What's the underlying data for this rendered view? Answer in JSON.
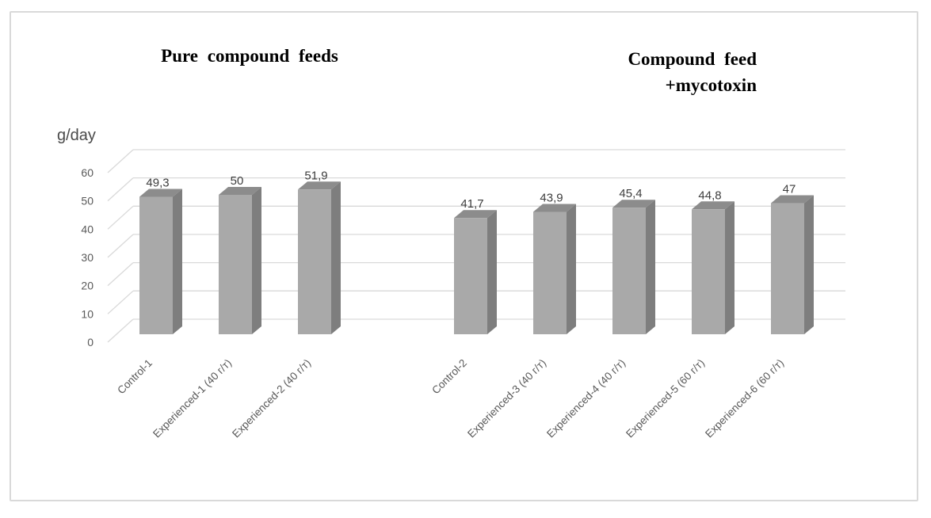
{
  "window": {
    "background": "#ffffff",
    "border_color": "#d9d9d9"
  },
  "titles": {
    "left": "Pure compound feeds",
    "right_line1": "Compound feed",
    "right_line2": "+mycotoxin"
  },
  "chart_data": {
    "type": "bar",
    "style": "3d-column",
    "title": "",
    "xlabel": "",
    "ylabel": "g/day",
    "ylim": [
      0,
      60
    ],
    "yticks": [
      0,
      10,
      20,
      30,
      40,
      50,
      60
    ],
    "grid": true,
    "legend": "none",
    "decimal_separator": ",",
    "group_titles": [
      "Pure compound feeds",
      "Compound feed +mycotoxin"
    ],
    "groups": [
      {
        "title": "Pure compound feeds",
        "categories": [
          "Control-1",
          "Experienced-1 (40 г/т)",
          "Experienced-2 (40 г/т)"
        ],
        "values": [
          49.3,
          50,
          51.9
        ]
      },
      {
        "title": "Compound feed +mycotoxin",
        "categories": [
          "Control-2",
          "Experienced-3 (40 г/т)",
          "Experienced-4 (40 г/т)",
          "Experienced-5 (60 г/т)",
          "Experienced-6 (60 г/т)"
        ],
        "values": [
          41.7,
          43.9,
          45.4,
          44.8,
          47
        ]
      }
    ],
    "categories": [
      "Control-1",
      "Experienced-1 (40 г/т)",
      "Experienced-2 (40 г/т)",
      "Control-2",
      "Experienced-3 (40 г/т)",
      "Experienced-4 (40 г/т)",
      "Experienced-5 (60 г/т)",
      "Experienced-6 (60 г/т)"
    ],
    "values": [
      49.3,
      50,
      51.9,
      41.7,
      43.9,
      45.4,
      44.8,
      47
    ],
    "value_labels": [
      "49,3",
      "50",
      "51,9",
      "41,7",
      "43,9",
      "45,4",
      "44,8",
      "47"
    ],
    "colors": {
      "bar_front": "#a9a9a9",
      "bar_top": "#8c8c8c",
      "bar_side": "#7e7e7e",
      "gridline": "#d9d9d9",
      "axis_text": "#595959",
      "value_text": "#3d3d3d"
    }
  }
}
